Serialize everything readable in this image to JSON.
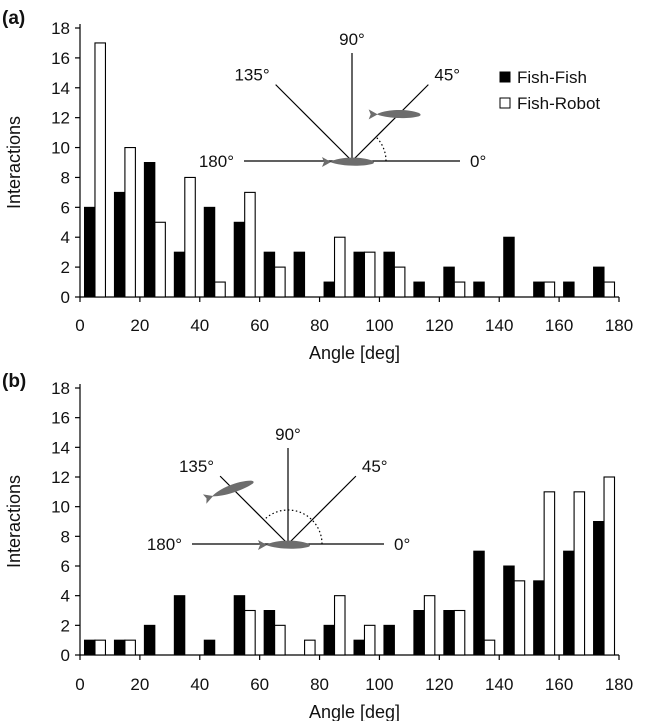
{
  "figure": {
    "panels": [
      {
        "panel_label": "(a)",
        "inset": {
          "angle_labels": [
            "0°",
            "45°",
            "90°",
            "135°",
            "180°"
          ],
          "fish_position": "45°"
        }
      },
      {
        "panel_label": "(b)",
        "inset": {
          "angle_labels": [
            "0°",
            "45°",
            "90°",
            "135°",
            "180°"
          ],
          "fish_position": "135°"
        }
      }
    ]
  },
  "colors": {
    "fish_fish": "#000000",
    "fish_robot": "#ffffff",
    "axis": "#000000",
    "inset_fish": "#6d6d6d"
  },
  "chart_data": [
    {
      "type": "bar",
      "panel": "(a)",
      "title": "",
      "xlabel": "Angle [deg]",
      "ylabel": "Interactions",
      "xlim": [
        0,
        180
      ],
      "ylim": [
        0,
        18
      ],
      "xticks": [
        0,
        20,
        40,
        60,
        80,
        100,
        120,
        140,
        160,
        180
      ],
      "yticks": [
        0,
        2,
        4,
        6,
        8,
        10,
        12,
        14,
        16,
        18
      ],
      "bin_width": 10,
      "categories": [
        5,
        15,
        25,
        35,
        45,
        55,
        65,
        75,
        85,
        95,
        105,
        115,
        125,
        135,
        145,
        155,
        165,
        175
      ],
      "series": [
        {
          "name": "Fish-Fish",
          "values": [
            6,
            7,
            9,
            3,
            6,
            5,
            3,
            3,
            1,
            3,
            3,
            1,
            2,
            1,
            4,
            1,
            1,
            2
          ]
        },
        {
          "name": "Fish-Robot",
          "values": [
            17,
            10,
            5,
            8,
            1,
            7,
            2,
            0,
            4,
            3,
            2,
            0,
            1,
            0,
            0,
            1,
            0,
            1
          ]
        }
      ],
      "legend": [
        "Fish-Fish",
        "Fish-Robot"
      ],
      "legend_position": "top-right"
    },
    {
      "type": "bar",
      "panel": "(b)",
      "title": "",
      "xlabel": "Angle [deg]",
      "ylabel": "Interactions",
      "xlim": [
        0,
        180
      ],
      "ylim": [
        0,
        18
      ],
      "xticks": [
        0,
        20,
        40,
        60,
        80,
        100,
        120,
        140,
        160,
        180
      ],
      "yticks": [
        0,
        2,
        4,
        6,
        8,
        10,
        12,
        14,
        16,
        18
      ],
      "bin_width": 10,
      "categories": [
        5,
        15,
        25,
        35,
        45,
        55,
        65,
        75,
        85,
        95,
        105,
        115,
        125,
        135,
        145,
        155,
        165,
        175
      ],
      "series": [
        {
          "name": "Fish-Fish",
          "values": [
            1,
            1,
            2,
            4,
            1,
            4,
            3,
            0,
            2,
            1,
            2,
            3,
            3,
            7,
            6,
            5,
            7,
            9
          ]
        },
        {
          "name": "Fish-Robot",
          "values": [
            1,
            1,
            0,
            0,
            0,
            3,
            2,
            1,
            4,
            2,
            0,
            4,
            3,
            1,
            5,
            11,
            11,
            12
          ]
        }
      ]
    }
  ]
}
